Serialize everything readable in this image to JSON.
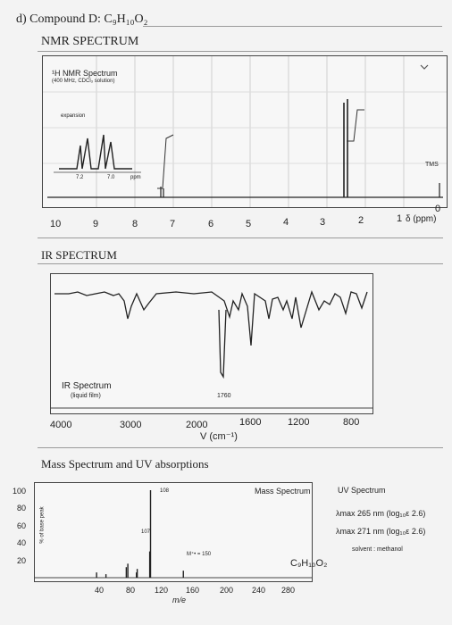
{
  "header": {
    "part": "d) Compound D: C₉H₁₀O₂",
    "nmr_section": "NMR SPECTRUM",
    "ir_section": "IR SPECTRUM",
    "ms_section": "Mass Spectrum and UV absorptions"
  },
  "nmr": {
    "title": "¹H NMR Spectrum",
    "conditions": "(400 MHz, CDCl₃ solution)",
    "expansion": "expansion",
    "inset_ticks": [
      "7.2",
      "7.0",
      "ppm"
    ],
    "tms": "TMS",
    "axis_ticks": [
      "10",
      "9",
      "8",
      "7",
      "6",
      "5",
      "4",
      "3",
      "2",
      "1",
      "0"
    ],
    "axis_unit": "δ (ppm)",
    "peaks_ppm": [
      {
        "ppm": 7.35,
        "height": 0.1
      },
      {
        "ppm": 7.28,
        "height": 0.09
      },
      {
        "ppm": 3.7,
        "height": 1.0
      },
      {
        "ppm": 2.2,
        "height": 0.95
      }
    ]
  },
  "ir": {
    "title": "IR Spectrum",
    "conditions": "(liquid film)",
    "peak_label": "1760",
    "axis_ticks": [
      "4000",
      "3000",
      "2000",
      "1600",
      "1200",
      "800"
    ],
    "axis_unit": "V (cm⁻¹)"
  },
  "ms": {
    "title": "Mass Spectrum",
    "ylabel": "% of base peak",
    "yticks": [
      "100",
      "80",
      "60",
      "40",
      "20"
    ],
    "xticks": [
      "40",
      "80",
      "120",
      "160",
      "200",
      "240",
      "280"
    ],
    "xlabel": "m/e",
    "peak_labels": [
      "108",
      "107"
    ],
    "molecular_ion": "M⁺• = 150",
    "formula": "C₉H₁₀O₂",
    "peaks": [
      {
        "mz": 39,
        "pct": 6
      },
      {
        "mz": 51,
        "pct": 4
      },
      {
        "mz": 77,
        "pct": 12
      },
      {
        "mz": 79,
        "pct": 16
      },
      {
        "mz": 90,
        "pct": 6
      },
      {
        "mz": 91,
        "pct": 10
      },
      {
        "mz": 107,
        "pct": 30
      },
      {
        "mz": 108,
        "pct": 100
      },
      {
        "mz": 150,
        "pct": 8
      }
    ]
  },
  "uv": {
    "title": "UV Spectrum",
    "line1": "λmax 265 nm (log₁₀ε 2.6)",
    "line2": "λmax 271 nm (log₁₀ε 2.6)",
    "solvent": "solvent : methanol"
  }
}
